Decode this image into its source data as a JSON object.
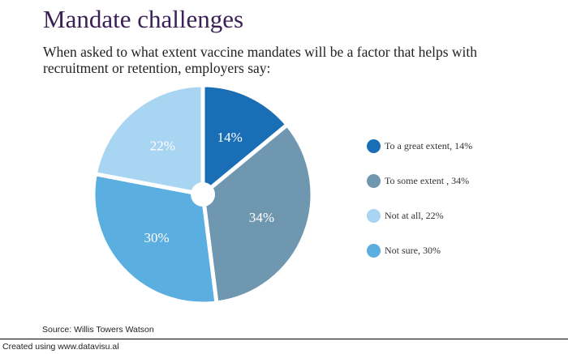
{
  "header": {
    "title": "Mandate challenges",
    "subtitle": "When asked to what extent vaccine mandates will be a factor that helps with recruitment or retention, employers say:"
  },
  "chart_data": {
    "type": "pie",
    "title": "Mandate challenges",
    "subtitle": "When asked to what extent vaccine mandates will be a factor that helps with recruitment or retention, employers say:",
    "slices": [
      {
        "label": "To a great extent",
        "value": 14,
        "display": "14%",
        "legend": "To a great extent, 14%",
        "color": "#1a6eb5",
        "text_color": "#ffffff"
      },
      {
        "label": "To some extent",
        "value": 34,
        "display": "34%",
        "legend": "To some extent , 34%",
        "color": "#7097b0",
        "text_color": "#ffffff"
      },
      {
        "label": "Not sure",
        "value": 30,
        "display": "30%",
        "legend": "Not sure, 30%",
        "color": "#5aaee0",
        "text_color": "#ffffff"
      },
      {
        "label": "Not at all",
        "value": 22,
        "display": "22%",
        "legend": "Not at all, 22%",
        "color": "#a8d5f1",
        "text_color": "#ffffff"
      }
    ],
    "legend_position": "right",
    "donut_hole": true
  },
  "legend_order": [
    0,
    1,
    3,
    2
  ],
  "footer": {
    "source": "Source: Willis Towers Watson",
    "credit": "Created using www.datavisu.al"
  }
}
